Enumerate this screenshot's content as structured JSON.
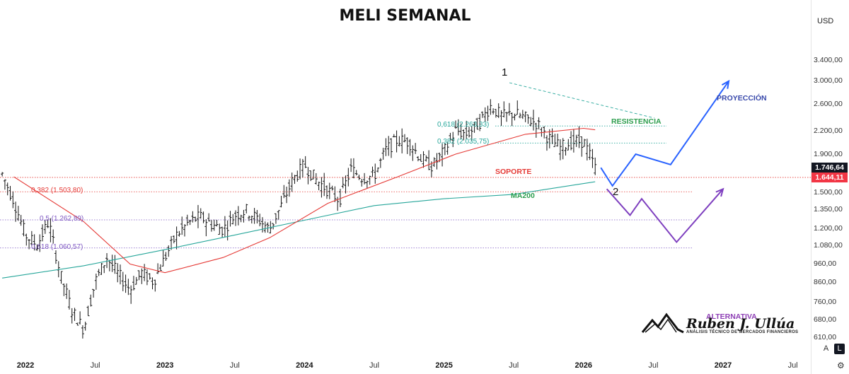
{
  "title": "MELI SEMANAL",
  "currency": "USD",
  "chart_data": {
    "type": "candlestick",
    "title": "MELI SEMANAL",
    "y_scale": "log",
    "ylim": [
      590,
      3500
    ],
    "y_ticks": [
      3400,
      3000,
      2600,
      2200,
      1900,
      1500,
      1350,
      1200,
      1080,
      960,
      860,
      760,
      680,
      610
    ],
    "y_tick_labels": [
      "3.400,00",
      "3.000,00",
      "2.600,00",
      "2.200,00",
      "1.900,00",
      "1.500,00",
      "1.350,00",
      "1.200,00",
      "1.080,00",
      "960,00",
      "860,00",
      "760,00",
      "680,00",
      "610,00"
    ],
    "x_ticks": [
      {
        "label": "2022",
        "date": "2022-01",
        "major": true
      },
      {
        "label": "Jul",
        "date": "2022-07",
        "major": false
      },
      {
        "label": "2023",
        "date": "2023-01",
        "major": true
      },
      {
        "label": "Jul",
        "date": "2023-07",
        "major": false
      },
      {
        "label": "2024",
        "date": "2024-01",
        "major": true
      },
      {
        "label": "Jul",
        "date": "2024-07",
        "major": false
      },
      {
        "label": "2025",
        "date": "2025-01",
        "major": true
      },
      {
        "label": "Jul",
        "date": "2025-07",
        "major": false
      },
      {
        "label": "2026",
        "date": "2026-01",
        "major": true
      },
      {
        "label": "Jul",
        "date": "2026-07",
        "major": false
      },
      {
        "label": "2027",
        "date": "2027-01",
        "major": true
      },
      {
        "label": "Jul",
        "date": "2027-07",
        "major": false
      }
    ],
    "price_path": [
      [
        "2021-11",
        1680
      ],
      [
        "2021-12",
        1420
      ],
      [
        "2022-01",
        1150
      ],
      [
        "2022-02",
        1080
      ],
      [
        "2022-03",
        1250
      ],
      [
        "2022-04",
        900
      ],
      [
        "2022-05",
        720
      ],
      [
        "2022-06",
        640
      ],
      [
        "2022-07",
        860
      ],
      [
        "2022-08",
        1000
      ],
      [
        "2022-09",
        900
      ],
      [
        "2022-10",
        820
      ],
      [
        "2022-11",
        910
      ],
      [
        "2022-12",
        860
      ],
      [
        "2023-01",
        1000
      ],
      [
        "2023-02",
        1150
      ],
      [
        "2023-03",
        1240
      ],
      [
        "2023-04",
        1290
      ],
      [
        "2023-05",
        1230
      ],
      [
        "2023-06",
        1190
      ],
      [
        "2023-07",
        1300
      ],
      [
        "2023-08",
        1340
      ],
      [
        "2023-09",
        1270
      ],
      [
        "2023-10",
        1190
      ],
      [
        "2023-11",
        1380
      ],
      [
        "2023-12",
        1620
      ],
      [
        "2024-01",
        1780
      ],
      [
        "2024-02",
        1620
      ],
      [
        "2024-03",
        1520
      ],
      [
        "2024-04",
        1430
      ],
      [
        "2024-05",
        1730
      ],
      [
        "2024-06",
        1640
      ],
      [
        "2024-07",
        1660
      ],
      [
        "2024-08",
        1950
      ],
      [
        "2024-09",
        2080
      ],
      [
        "2024-10",
        2050
      ],
      [
        "2024-11",
        1850
      ],
      [
        "2024-12",
        1760
      ],
      [
        "2025-01",
        1930
      ],
      [
        "2025-02",
        2200
      ],
      [
        "2025-03",
        2150
      ],
      [
        "2025-04",
        2300
      ],
      [
        "2025-05",
        2560
      ],
      [
        "2025-06",
        2400
      ],
      [
        "2025-07",
        2450
      ],
      [
        "2025-08",
        2380
      ],
      [
        "2025-09",
        2300
      ],
      [
        "2025-10",
        2100
      ],
      [
        "2025-11",
        1980
      ],
      [
        "2025-12",
        2050
      ],
      [
        "2026-01",
        2060
      ],
      [
        "2026-02",
        1746.64
      ]
    ],
    "series": [
      {
        "name": "MA200",
        "color": "#26a69a",
        "values": [
          [
            "2021-11",
            880
          ],
          [
            "2022-06",
            950
          ],
          [
            "2023-01",
            1050
          ],
          [
            "2023-07",
            1150
          ],
          [
            "2024-01",
            1260
          ],
          [
            "2024-07",
            1380
          ],
          [
            "2025-01",
            1440
          ],
          [
            "2025-07",
            1480
          ],
          [
            "2026-02",
            1600
          ]
        ]
      },
      {
        "color": "#e53935",
        "values": [
          [
            "2021-12",
            1650
          ],
          [
            "2022-06",
            1250
          ],
          [
            "2022-10",
            960
          ],
          [
            "2023-01",
            910
          ],
          [
            "2023-06",
            1000
          ],
          [
            "2023-10",
            1130
          ],
          [
            "2024-03",
            1400
          ],
          [
            "2024-09",
            1650
          ],
          [
            "2025-02",
            1900
          ],
          [
            "2025-08",
            2150
          ],
          [
            "2026-01",
            2230
          ],
          [
            "2026-02",
            2210
          ]
        ]
      }
    ],
    "fibonacci": [
      {
        "label": "0,618 (2.263,33)",
        "value": 2263.33,
        "color": "#26a69a"
      },
      {
        "label": "0,382 (2.035,75)",
        "value": 2035.75,
        "color": "#26a69a"
      },
      {
        "label": "0,382 (1.503,80)",
        "value": 1503.8,
        "color": "#e53935"
      },
      {
        "label": "0,5 (1.262,89)",
        "value": 1262.89,
        "color": "#7e57c2"
      },
      {
        "label": "0,618 (1.060,57)",
        "value": 1060.57,
        "color": "#7e57c2"
      }
    ],
    "annotations": [
      {
        "text": "PROYECCIÓN",
        "color": "#3949ab"
      },
      {
        "text": "RESISTENCIA",
        "color": "#2e9e4f"
      },
      {
        "text": "SOPORTE",
        "color": "#e53935"
      },
      {
        "text": "MA200",
        "color": "#2e9e4f"
      },
      {
        "text": "ALTERNATIVA",
        "color": "#8e3fb5"
      },
      {
        "text": "1",
        "color": "#111111"
      },
      {
        "text": "2",
        "color": "#111111"
      }
    ],
    "projections": [
      {
        "name": "PROYECCIÓN",
        "color": "#2962ff",
        "points": [
          [
            "2026-02",
            1746.64
          ],
          [
            "2026-03",
            1560
          ],
          [
            "2026-05",
            1900
          ],
          [
            "2026-08",
            1780
          ],
          [
            "2027-01",
            2990
          ]
        ]
      },
      {
        "name": "ALTERNATIVA",
        "color": "#7e3fbf",
        "points": [
          [
            "2026-03",
            1530
          ],
          [
            "2026-05",
            1300
          ],
          [
            "2026-06",
            1440
          ],
          [
            "2026-09",
            1100
          ],
          [
            "2027-01",
            1530
          ]
        ]
      }
    ],
    "price_tags": [
      {
        "label": "1.746,64",
        "value": 1746.64,
        "style": "dark"
      },
      {
        "label": "1.644,11",
        "value": 1644.11,
        "style": "red"
      }
    ]
  },
  "logo": {
    "name": "Ruben J. Ullúa",
    "tagline": "ANÁLISIS TÉCNICO DE MERCADOS FINANCIEROS"
  },
  "controls": {
    "auto_label": "A",
    "log_label": "L",
    "settings_icon": "gear-icon"
  }
}
